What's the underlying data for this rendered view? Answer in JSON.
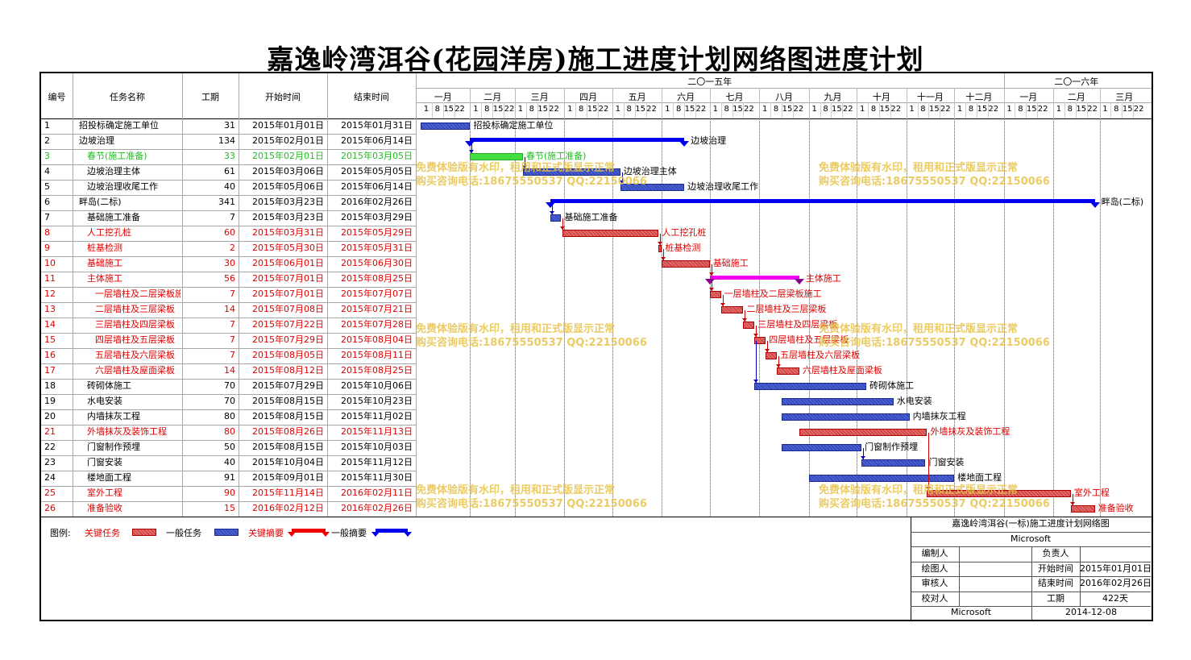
{
  "title": "嘉逸岭湾洱谷(花园洋房)施工进度计划网络图进度计划",
  "columns": {
    "id": "编号",
    "name": "任务名称",
    "duration": "工期",
    "start": "开始时间",
    "end": "结束时间"
  },
  "years": [
    {
      "label": "二〇一五年"
    },
    {
      "label": "二〇一六年"
    }
  ],
  "months": [
    "一月",
    "二月",
    "三月",
    "四月",
    "五月",
    "六月",
    "七月",
    "八月",
    "九月",
    "十月",
    "十一月",
    "十二月",
    "一月",
    "二月",
    "三月"
  ],
  "week_ticks": [
    "1",
    "8",
    "15",
    "22"
  ],
  "colors": {
    "normal": "#2b3fb0",
    "critical": "#cc3333",
    "milestone": "#33cc33",
    "summary_normal": "#0000ee",
    "summary_critical": "#ee00ee",
    "text_critical": "#e00000",
    "text_milestone": "#22bb22"
  },
  "tasks": [
    {
      "id": "1",
      "name": "招投标确定施工单位",
      "duration": "31",
      "start": "2015年01月01日",
      "end": "2015年01月31日",
      "kind": "normal",
      "indent": 0,
      "bar_label": "招投标确定施工单位",
      "s": "2015-01-01",
      "e": "2015-01-31"
    },
    {
      "id": "2",
      "name": "边坡治理",
      "duration": "134",
      "start": "2015年02月01日",
      "end": "2015年06月14日",
      "kind": "summary",
      "indent": 0,
      "bar_label": "边坡治理",
      "s": "2015-02-01",
      "e": "2015-06-14"
    },
    {
      "id": "3",
      "name": "春节(施工准备)",
      "duration": "33",
      "start": "2015年02月01日",
      "end": "2015年03月05日",
      "kind": "milestone",
      "indent": 1,
      "bar_label": "春节(施工准备)",
      "s": "2015-02-01",
      "e": "2015-03-05"
    },
    {
      "id": "4",
      "name": "边坡治理主体",
      "duration": "61",
      "start": "2015年03月06日",
      "end": "2015年05月05日",
      "kind": "normal",
      "indent": 1,
      "bar_label": "边坡治理主体",
      "s": "2015-03-06",
      "e": "2015-05-05"
    },
    {
      "id": "5",
      "name": "边坡治理收尾工作",
      "duration": "40",
      "start": "2015年05月06日",
      "end": "2015年06月14日",
      "kind": "normal",
      "indent": 1,
      "bar_label": "边坡治理收尾工作",
      "s": "2015-05-06",
      "e": "2015-06-14"
    },
    {
      "id": "6",
      "name": "畔岛(二标)",
      "duration": "341",
      "start": "2015年03月23日",
      "end": "2016年02月26日",
      "kind": "summary",
      "indent": 0,
      "bar_label": "畔岛(二标)",
      "s": "2015-03-23",
      "e": "2016-02-26"
    },
    {
      "id": "7",
      "name": "基础施工准备",
      "duration": "7",
      "start": "2015年03月23日",
      "end": "2015年03月29日",
      "kind": "normal",
      "indent": 1,
      "bar_label": "基础施工准备",
      "s": "2015-03-23",
      "e": "2015-03-29"
    },
    {
      "id": "8",
      "name": "人工挖孔桩",
      "duration": "60",
      "start": "2015年03月31日",
      "end": "2015年05月29日",
      "kind": "critical",
      "indent": 1,
      "bar_label": "人工挖孔桩",
      "s": "2015-03-31",
      "e": "2015-05-29"
    },
    {
      "id": "9",
      "name": "桩基检测",
      "duration": "2",
      "start": "2015年05月30日",
      "end": "2015年05月31日",
      "kind": "critical",
      "indent": 1,
      "bar_label": "桩基检测",
      "s": "2015-05-30",
      "e": "2015-05-31"
    },
    {
      "id": "10",
      "name": "基础施工",
      "duration": "30",
      "start": "2015年06月01日",
      "end": "2015年06月30日",
      "kind": "critical",
      "indent": 1,
      "bar_label": "基础施工",
      "s": "2015-06-01",
      "e": "2015-06-30"
    },
    {
      "id": "11",
      "name": "主体施工",
      "duration": "56",
      "start": "2015年07月01日",
      "end": "2015年08月25日",
      "kind": "csummary",
      "indent": 1,
      "bar_label": "主体施工",
      "s": "2015-07-01",
      "e": "2015-08-25"
    },
    {
      "id": "12",
      "name": "一层墙柱及二层梁板施工",
      "duration": "7",
      "start": "2015年07月01日",
      "end": "2015年07月07日",
      "kind": "critical",
      "indent": 2,
      "bar_label": "一层墙柱及二层梁板施工",
      "s": "2015-07-01",
      "e": "2015-07-07"
    },
    {
      "id": "13",
      "name": "二层墙柱及三层梁板",
      "duration": "14",
      "start": "2015年07月08日",
      "end": "2015年07月21日",
      "kind": "critical",
      "indent": 2,
      "bar_label": "二层墙柱及三层梁板",
      "s": "2015-07-08",
      "e": "2015-07-21"
    },
    {
      "id": "14",
      "name": "三层墙柱及四层梁板",
      "duration": "7",
      "start": "2015年07月22日",
      "end": "2015年07月28日",
      "kind": "critical",
      "indent": 2,
      "bar_label": "三层墙柱及四层梁板",
      "s": "2015-07-22",
      "e": "2015-07-28"
    },
    {
      "id": "15",
      "name": "四层墙柱及五层梁板",
      "duration": "7",
      "start": "2015年07月29日",
      "end": "2015年08月04日",
      "kind": "critical",
      "indent": 2,
      "bar_label": "四层墙柱及五层梁板",
      "s": "2015-07-29",
      "e": "2015-08-04"
    },
    {
      "id": "16",
      "name": "五层墙柱及六层梁板",
      "duration": "7",
      "start": "2015年08月05日",
      "end": "2015年08月11日",
      "kind": "critical",
      "indent": 2,
      "bar_label": "五层墙柱及六层梁板",
      "s": "2015-08-05",
      "e": "2015-08-11"
    },
    {
      "id": "17",
      "name": "六层墙柱及屋面梁板",
      "duration": "14",
      "start": "2015年08月12日",
      "end": "2015年08月25日",
      "kind": "critical",
      "indent": 2,
      "bar_label": "六层墙柱及屋面梁板",
      "s": "2015-08-12",
      "e": "2015-08-25"
    },
    {
      "id": "18",
      "name": "砖砌体施工",
      "duration": "70",
      "start": "2015年07月29日",
      "end": "2015年10月06日",
      "kind": "normal",
      "indent": 1,
      "bar_label": "砖砌体施工",
      "s": "2015-07-29",
      "e": "2015-10-06"
    },
    {
      "id": "19",
      "name": "水电安装",
      "duration": "70",
      "start": "2015年08月15日",
      "end": "2015年10月23日",
      "kind": "normal",
      "indent": 1,
      "bar_label": "水电安装",
      "s": "2015-08-15",
      "e": "2015-10-23"
    },
    {
      "id": "20",
      "name": "内墙抹灰工程",
      "duration": "80",
      "start": "2015年08月15日",
      "end": "2015年11月02日",
      "kind": "normal",
      "indent": 1,
      "bar_label": "内墙抹灰工程",
      "s": "2015-08-15",
      "e": "2015-11-02"
    },
    {
      "id": "21",
      "name": "外墙抹灰及装饰工程",
      "duration": "80",
      "start": "2015年08月26日",
      "end": "2015年11月13日",
      "kind": "critical",
      "indent": 1,
      "bar_label": "外墙抹灰及装饰工程",
      "s": "2015-08-26",
      "e": "2015-11-13"
    },
    {
      "id": "22",
      "name": "门窗制作预埋",
      "duration": "50",
      "start": "2015年08月15日",
      "end": "2015年10月03日",
      "kind": "normal",
      "indent": 1,
      "bar_label": "门窗制作预埋",
      "s": "2015-08-15",
      "e": "2015-10-03"
    },
    {
      "id": "23",
      "name": "门窗安装",
      "duration": "40",
      "start": "2015年10月04日",
      "end": "2015年11月12日",
      "kind": "normal",
      "indent": 1,
      "bar_label": "门窗安装",
      "s": "2015-10-04",
      "e": "2015-11-12"
    },
    {
      "id": "24",
      "name": "楼地面工程",
      "duration": "91",
      "start": "2015年09月01日",
      "end": "2015年11月30日",
      "kind": "normal",
      "indent": 1,
      "bar_label": "楼地面工程",
      "s": "2015-09-01",
      "e": "2015-11-30"
    },
    {
      "id": "25",
      "name": "室外工程",
      "duration": "90",
      "start": "2015年11月14日",
      "end": "2016年02月11日",
      "kind": "critical",
      "indent": 1,
      "bar_label": "室外工程",
      "s": "2015-11-14",
      "e": "2016-02-11"
    },
    {
      "id": "26",
      "name": "准备验收",
      "duration": "15",
      "start": "2016年02月12日",
      "end": "2016年02月26日",
      "kind": "critical",
      "indent": 1,
      "bar_label": "准备验收",
      "s": "2016-02-12",
      "e": "2016-02-26"
    }
  ],
  "watermark": {
    "line1": "免费体验版有水印，租用和正式版显示正常",
    "line2": "购买咨询电话:18675550537 QQ:22150066"
  },
  "legend": {
    "title": "图例:",
    "critical_task": "关键任务",
    "normal_task": "一般任务",
    "critical_summary": "关键摘要",
    "normal_summary": "一般摘要"
  },
  "titleblock": {
    "project": "嘉逸岭湾洱谷(一标)施工进度计划网络图",
    "company": "Microsoft",
    "editor_label": "编制人",
    "editor": "",
    "owner_label": "负责人",
    "owner": "",
    "drawer_label": "绘图人",
    "drawer": "",
    "start_label": "开始时间",
    "start": "2015年01月01日",
    "reviewer_label": "审核人",
    "reviewer": "",
    "end_label": "结束时间",
    "end": "2016年02月26日",
    "checker_label": "校对人",
    "checker": "",
    "duration_label": "工期",
    "duration": "422天",
    "footer_company": "Microsoft",
    "date": "2014-12-08"
  }
}
